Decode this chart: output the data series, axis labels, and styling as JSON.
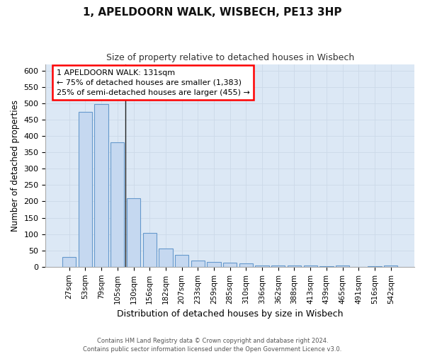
{
  "title": "1, APELDOORN WALK, WISBECH, PE13 3HP",
  "subtitle": "Size of property relative to detached houses in Wisbech",
  "xlabel": "Distribution of detached houses by size in Wisbech",
  "ylabel": "Number of detached properties",
  "categories": [
    "27sqm",
    "53sqm",
    "79sqm",
    "105sqm",
    "130sqm",
    "156sqm",
    "182sqm",
    "207sqm",
    "233sqm",
    "259sqm",
    "285sqm",
    "310sqm",
    "336sqm",
    "362sqm",
    "388sqm",
    "413sqm",
    "439sqm",
    "465sqm",
    "491sqm",
    "516sqm",
    "542sqm"
  ],
  "values": [
    30,
    473,
    497,
    380,
    210,
    104,
    55,
    37,
    19,
    14,
    12,
    10,
    5,
    5,
    4,
    4,
    1,
    4,
    0,
    1,
    4
  ],
  "bar_color": "#c5d8f0",
  "bar_edge_color": "#6699cc",
  "vline_color": "#222222",
  "grid_color": "#ccd9e8",
  "background_color": "#ffffff",
  "plot_bg_color": "#dce8f5",
  "annotation_box_text": "1 APELDOORN WALK: 131sqm\n← 75% of detached houses are smaller (1,383)\n25% of semi-detached houses are larger (455) →",
  "footer_text": "Contains HM Land Registry data © Crown copyright and database right 2024.\nContains public sector information licensed under the Open Government Licence v3.0.",
  "ylim": [
    0,
    620
  ],
  "yticks": [
    0,
    50,
    100,
    150,
    200,
    250,
    300,
    350,
    400,
    450,
    500,
    550,
    600
  ],
  "vline_x": 3.5
}
